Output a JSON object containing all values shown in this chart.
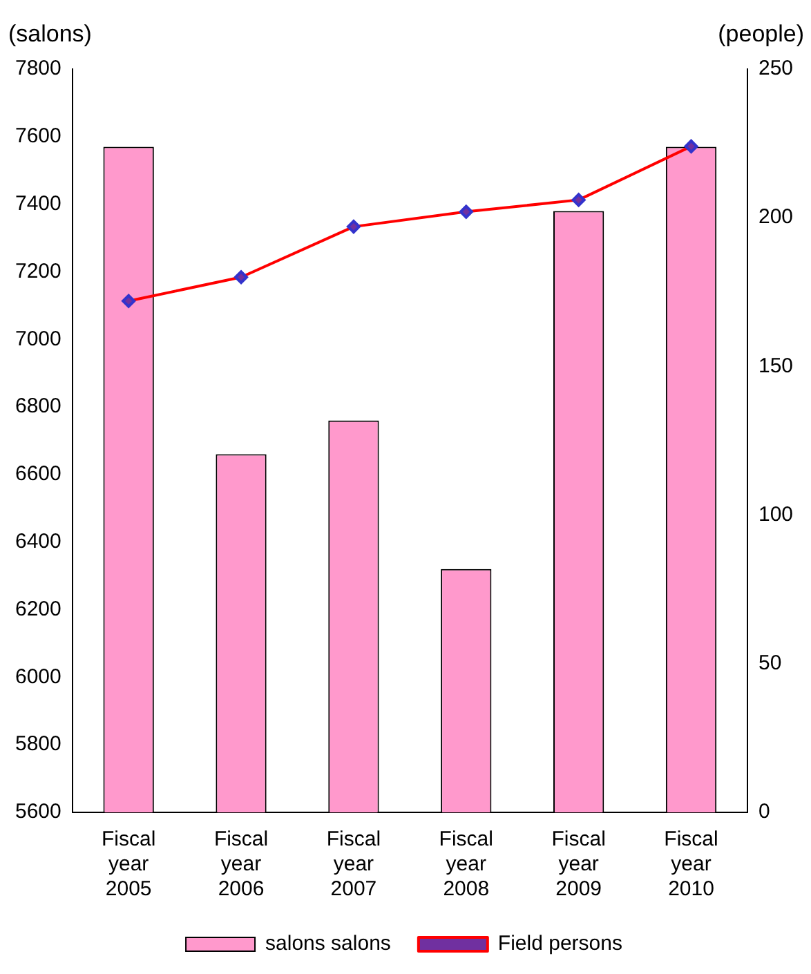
{
  "chart_data": {
    "type": "bar",
    "ylabel": "(salons)",
    "y2label": "(people)",
    "categories": [
      "Fiscal year 2005",
      "Fiscal year 2006",
      "Fiscal year 2007",
      "Fiscal year 2008",
      "Fiscal year 2009",
      "Fiscal year 2010"
    ],
    "series": [
      {
        "name": "salons salons",
        "color": "#ff99cc",
        "values": [
          7570,
          6660,
          6760,
          6320,
          7380,
          7570
        ]
      },
      {
        "name": "Field persons",
        "type": "line",
        "axis": "y2",
        "color": "#ff0000",
        "values": [
          172,
          180,
          197,
          202,
          206,
          224
        ]
      }
    ],
    "ylim": [
      5600,
      7800
    ],
    "yticks": [
      5600,
      5800,
      6000,
      6200,
      6400,
      6600,
      6800,
      7000,
      7200,
      7400,
      7600,
      7800
    ],
    "y2lim": [
      0,
      250
    ],
    "y2ticks": [
      0,
      50,
      100,
      150,
      200,
      250
    ],
    "grid": false,
    "legend": "bottom",
    "marker": "diamond",
    "line_style": "solid"
  }
}
